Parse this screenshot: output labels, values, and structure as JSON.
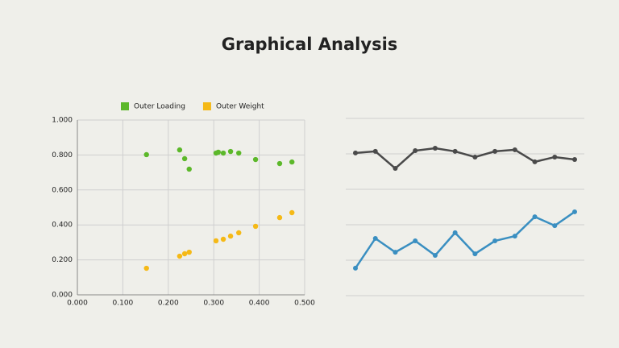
{
  "title": "Graphical Analysis",
  "chart_data": [
    {
      "type": "scatter",
      "legend": "top",
      "series": [
        {
          "name": "Outer Loading",
          "color": "#5cb82a",
          "x": [
            0.152,
            0.225,
            0.236,
            0.246,
            0.305,
            0.31,
            0.321,
            0.337,
            0.355,
            0.392,
            0.445,
            0.472
          ],
          "values": [
            0.802,
            0.829,
            0.779,
            0.719,
            0.811,
            0.816,
            0.811,
            0.82,
            0.811,
            0.774,
            0.751,
            0.76
          ]
        },
        {
          "name": "Outer Weight",
          "color": "#f5b916",
          "x": [
            0.152,
            0.225,
            0.236,
            0.246,
            0.305,
            0.321,
            0.337,
            0.355,
            0.392,
            0.445,
            0.472
          ],
          "values": [
            0.152,
            0.221,
            0.235,
            0.244,
            0.309,
            0.318,
            0.336,
            0.355,
            0.392,
            0.442,
            0.47
          ]
        }
      ],
      "xlim": [
        0,
        0.5
      ],
      "xticks": [
        {
          "value": 0,
          "label": "0.000"
        },
        {
          "value": 0.1,
          "label": "0.100"
        },
        {
          "value": 0.2,
          "label": "0.200"
        },
        {
          "value": 0.3,
          "label": "0.300"
        },
        {
          "value": 0.4,
          "label": "0.400"
        },
        {
          "value": 0.5,
          "label": "0.500"
        }
      ],
      "ylim": [
        0,
        1
      ],
      "yticks": [
        {
          "value": 0,
          "label": "0.000"
        },
        {
          "value": 0.2,
          "label": "0.200"
        },
        {
          "value": 0.4,
          "label": "0.400"
        },
        {
          "value": 0.6,
          "label": "0.600"
        },
        {
          "value": 0.8,
          "label": "0.800"
        },
        {
          "value": 1,
          "label": "1.000"
        }
      ],
      "grid": true
    },
    {
      "type": "line",
      "categories": [
        null,
        null,
        null,
        null,
        null,
        null,
        null,
        null,
        null,
        null,
        null,
        null
      ],
      "series": [
        {
          "color": "#4a4a4a",
          "values": [
            0.805,
            0.814,
            0.718,
            0.818,
            0.832,
            0.814,
            0.782,
            0.814,
            0.823,
            0.755,
            0.782,
            0.768
          ]
        },
        {
          "color": "#3a8fc1",
          "values": [
            0.155,
            0.323,
            0.245,
            0.309,
            0.227,
            0.355,
            0.236,
            0.309,
            0.336,
            0.445,
            0.395,
            0.473
          ]
        }
      ],
      "ylim": [
        0,
        1
      ],
      "yticks": [
        0,
        0.2,
        0.4,
        0.6,
        0.8,
        1
      ],
      "grid": true
    }
  ]
}
